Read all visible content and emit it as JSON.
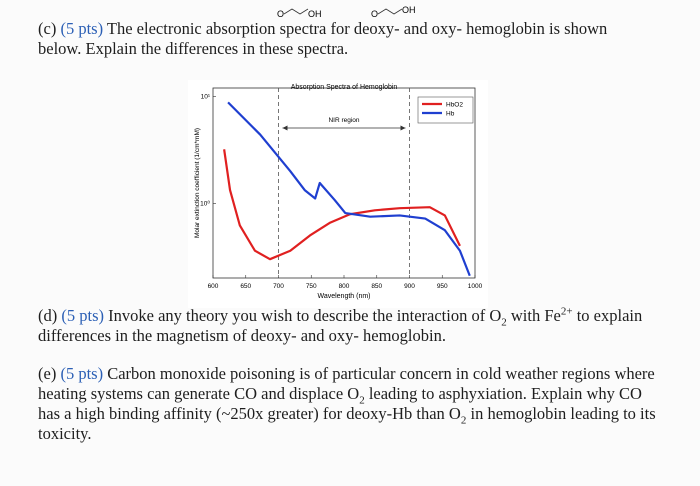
{
  "structures": [
    {
      "left": "O",
      "right": "OH"
    },
    {
      "left": "O",
      "right": "OH"
    }
  ],
  "questions": [
    {
      "label": "(c)",
      "points": "(5 pts)",
      "parts": [
        "The electronic absorption spectra for deoxy- and oxy- hemoglobin is shown below. Explain the differences in these spectra."
      ]
    },
    {
      "label": "(d)",
      "points": "(5 pts)",
      "parts": [
        "Invoke any theory you wish to describe the interaction of O",
        "2",
        " with Fe",
        "2+",
        " to explain differences in the magnetism of deoxy- and oxy- hemoglobin."
      ]
    },
    {
      "label": "(e)",
      "points": "(5 pts)",
      "parts": [
        "Carbon monoxide poisoning is of particular concern in cold weather regions where heating systems can generate CO and displace O",
        "2",
        " leading to asphyxiation. Explain why CO has a high binding affinity (~250x greater) for deoxy-Hb than O",
        "2",
        " in hemoglobin leading to its toxicity."
      ]
    }
  ],
  "chart_data": {
    "type": "line",
    "title": "Absorption Spectra of Hemoglobin",
    "x_label": "Wavelength (nm)",
    "y_label": "Molar extinction coefficient (1/cm*mM)",
    "xlim": [
      600,
      1000
    ],
    "xticks": [
      600,
      650,
      700,
      750,
      800,
      850,
      900,
      950,
      1000
    ],
    "ylim": [
      0.2,
      12
    ],
    "log_y": true,
    "yticks": [
      {
        "value": 1,
        "label": "10⁰"
      },
      {
        "value": 10,
        "label": "10¹"
      }
    ],
    "region": [
      700,
      900
    ],
    "region_label": "NIR region",
    "series": [
      {
        "name": "HbO2",
        "color": "#e02020",
        "x": [
          617,
          626,
          641,
          664,
          687,
          718,
          748,
          779,
          809,
          847,
          885,
          931,
          954,
          977
        ],
        "values": [
          3.2,
          1.33,
          0.62,
          0.36,
          0.3,
          0.36,
          0.5,
          0.66,
          0.79,
          0.86,
          0.9,
          0.92,
          0.77,
          0.4
        ]
      },
      {
        "name": "Hb",
        "color": "#1f3fd0",
        "x": [
          623,
          672,
          718,
          740,
          756,
          763,
          786,
          802,
          840,
          885,
          924,
          954,
          977,
          992
        ],
        "values": [
          8.8,
          4.4,
          2.0,
          1.33,
          1.11,
          1.55,
          1.07,
          0.81,
          0.75,
          0.77,
          0.72,
          0.56,
          0.36,
          0.21
        ]
      }
    ]
  }
}
